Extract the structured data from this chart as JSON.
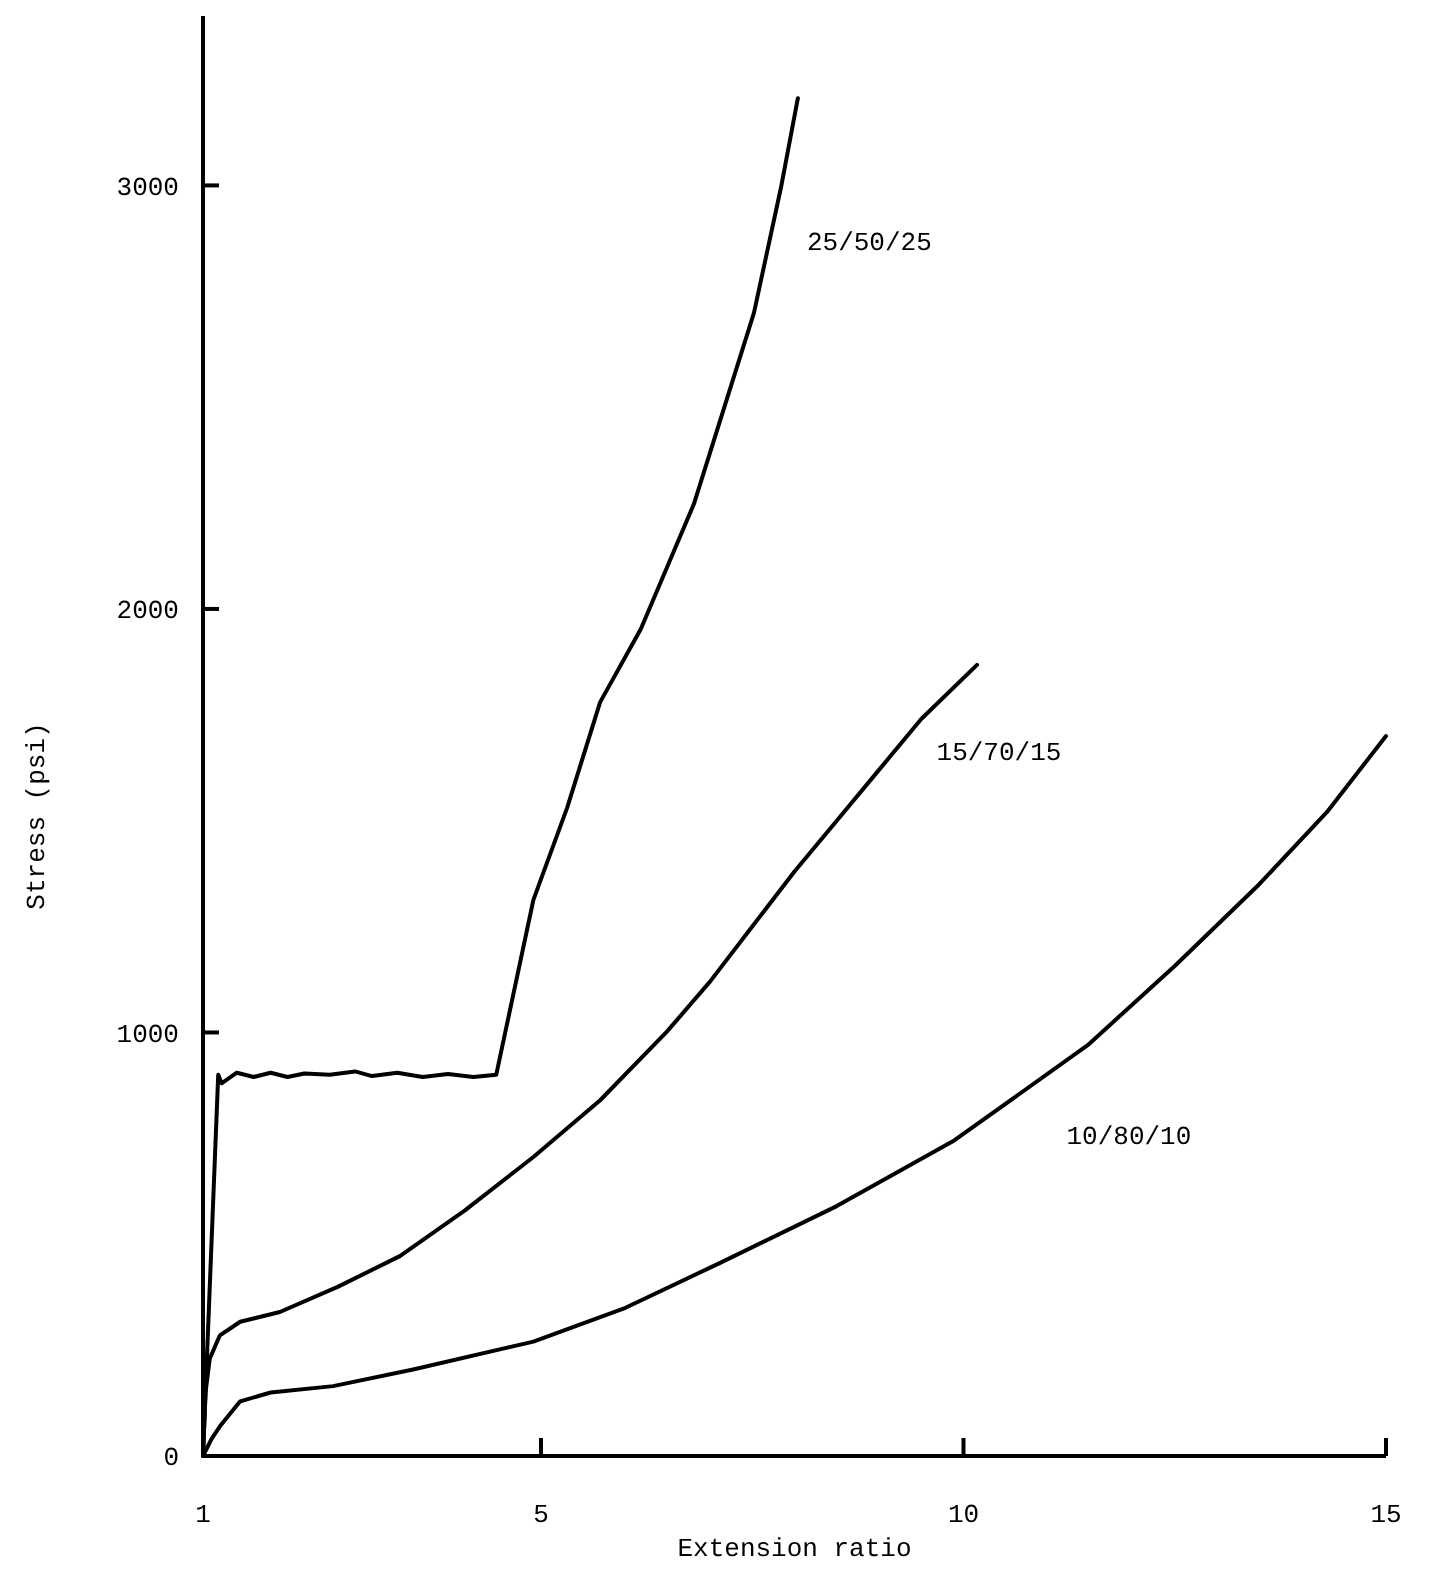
{
  "chart_data": {
    "type": "line",
    "xlabel": "Extension ratio",
    "ylabel": "Stress (psi)",
    "xlim": [
      1,
      15
    ],
    "ylim": [
      0,
      3400
    ],
    "xticks": [
      1,
      5,
      10,
      15
    ],
    "yticks": [
      0,
      1000,
      2000,
      3000
    ],
    "grid": false,
    "marker": "none",
    "line_style": "solid",
    "series": [
      {
        "name": "25/50/25",
        "color": "#000000",
        "x": [
          1,
          1.1,
          1.18,
          1.22,
          1.4,
          1.6,
          1.8,
          2.0,
          2.2,
          2.5,
          2.8,
          3.0,
          3.3,
          3.6,
          3.9,
          4.2,
          4.47,
          4.91,
          5.31,
          5.7,
          6.18,
          6.81,
          7.52,
          7.84,
          8.04
        ],
        "values": [
          0,
          500,
          900,
          880,
          905,
          895,
          905,
          895,
          903,
          900,
          908,
          897,
          905,
          895,
          902,
          895,
          900,
          1313,
          1531,
          1780,
          1952,
          2248,
          2699,
          2995,
          3206
        ]
      },
      {
        "name": "15/70/15",
        "color": "#000000",
        "x": [
          1,
          1.03,
          1.08,
          1.2,
          1.44,
          1.91,
          2.6,
          3.33,
          4.1,
          4.91,
          5.7,
          6.49,
          7.0,
          7.5,
          8.0,
          8.5,
          9.0,
          9.5,
          10.16
        ],
        "values": [
          0,
          150,
          230,
          285,
          317,
          340,
          400,
          472,
          580,
          706,
          840,
          1002,
          1120,
          1250,
          1380,
          1500,
          1620,
          1740,
          1868
        ]
      },
      {
        "name": "10/80/10",
        "color": "#000000",
        "x": [
          1,
          1.1,
          1.2,
          1.44,
          1.8,
          2.54,
          3.5,
          4.91,
          6.0,
          7.12,
          8.5,
          9.89,
          11.47,
          12.5,
          13.5,
          14.3,
          15
        ],
        "values": [
          0,
          40,
          70,
          129,
          150,
          165,
          205,
          270,
          350,
          456,
          590,
          745,
          970,
          1157,
          1350,
          1520,
          1700
        ]
      }
    ]
  }
}
